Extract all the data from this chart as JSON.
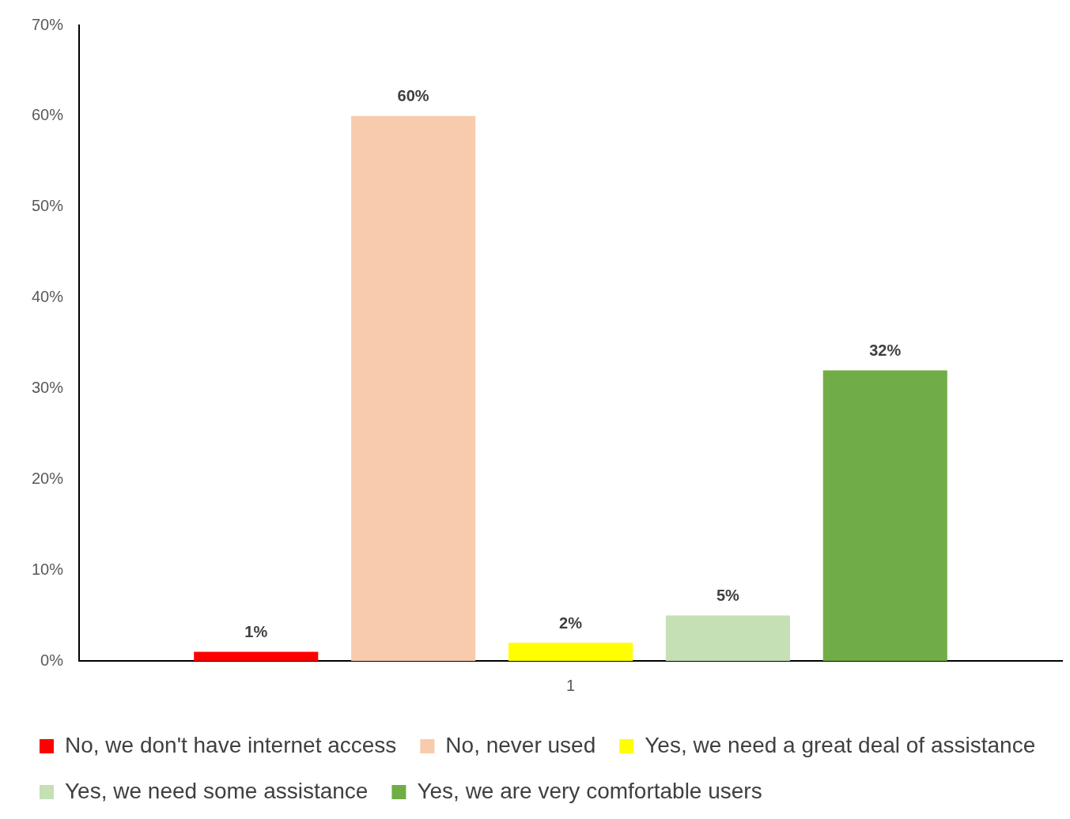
{
  "chart_data": {
    "type": "bar",
    "categories": [
      "1"
    ],
    "series": [
      {
        "name": "No, we don't have internet access",
        "color": "#ff0000",
        "values": [
          1
        ],
        "value_labels": [
          "1%"
        ]
      },
      {
        "name": "No, never used",
        "color": "#f8cbad",
        "values": [
          60
        ],
        "value_labels": [
          "60%"
        ]
      },
      {
        "name": "Yes, we need a great deal of assistance",
        "color": "#ffff00",
        "values": [
          2
        ],
        "value_labels": [
          "2%"
        ]
      },
      {
        "name": "Yes, we need some assistance",
        "color": "#c5e0b4",
        "values": [
          5
        ],
        "value_labels": [
          "5%"
        ]
      },
      {
        "name": "Yes, we are very comfortable users",
        "color": "#70ad47",
        "values": [
          32
        ],
        "value_labels": [
          "32%"
        ]
      }
    ],
    "ylim": [
      0,
      70
    ],
    "yticks": [
      {
        "value": 0,
        "label": "0%"
      },
      {
        "value": 10,
        "label": "10%"
      },
      {
        "value": 20,
        "label": "20%"
      },
      {
        "value": 30,
        "label": "30%"
      },
      {
        "value": 40,
        "label": "40%"
      },
      {
        "value": 50,
        "label": "50%"
      },
      {
        "value": 60,
        "label": "60%"
      },
      {
        "value": 70,
        "label": "70%"
      }
    ],
    "grid": false,
    "legend": "bottom"
  }
}
